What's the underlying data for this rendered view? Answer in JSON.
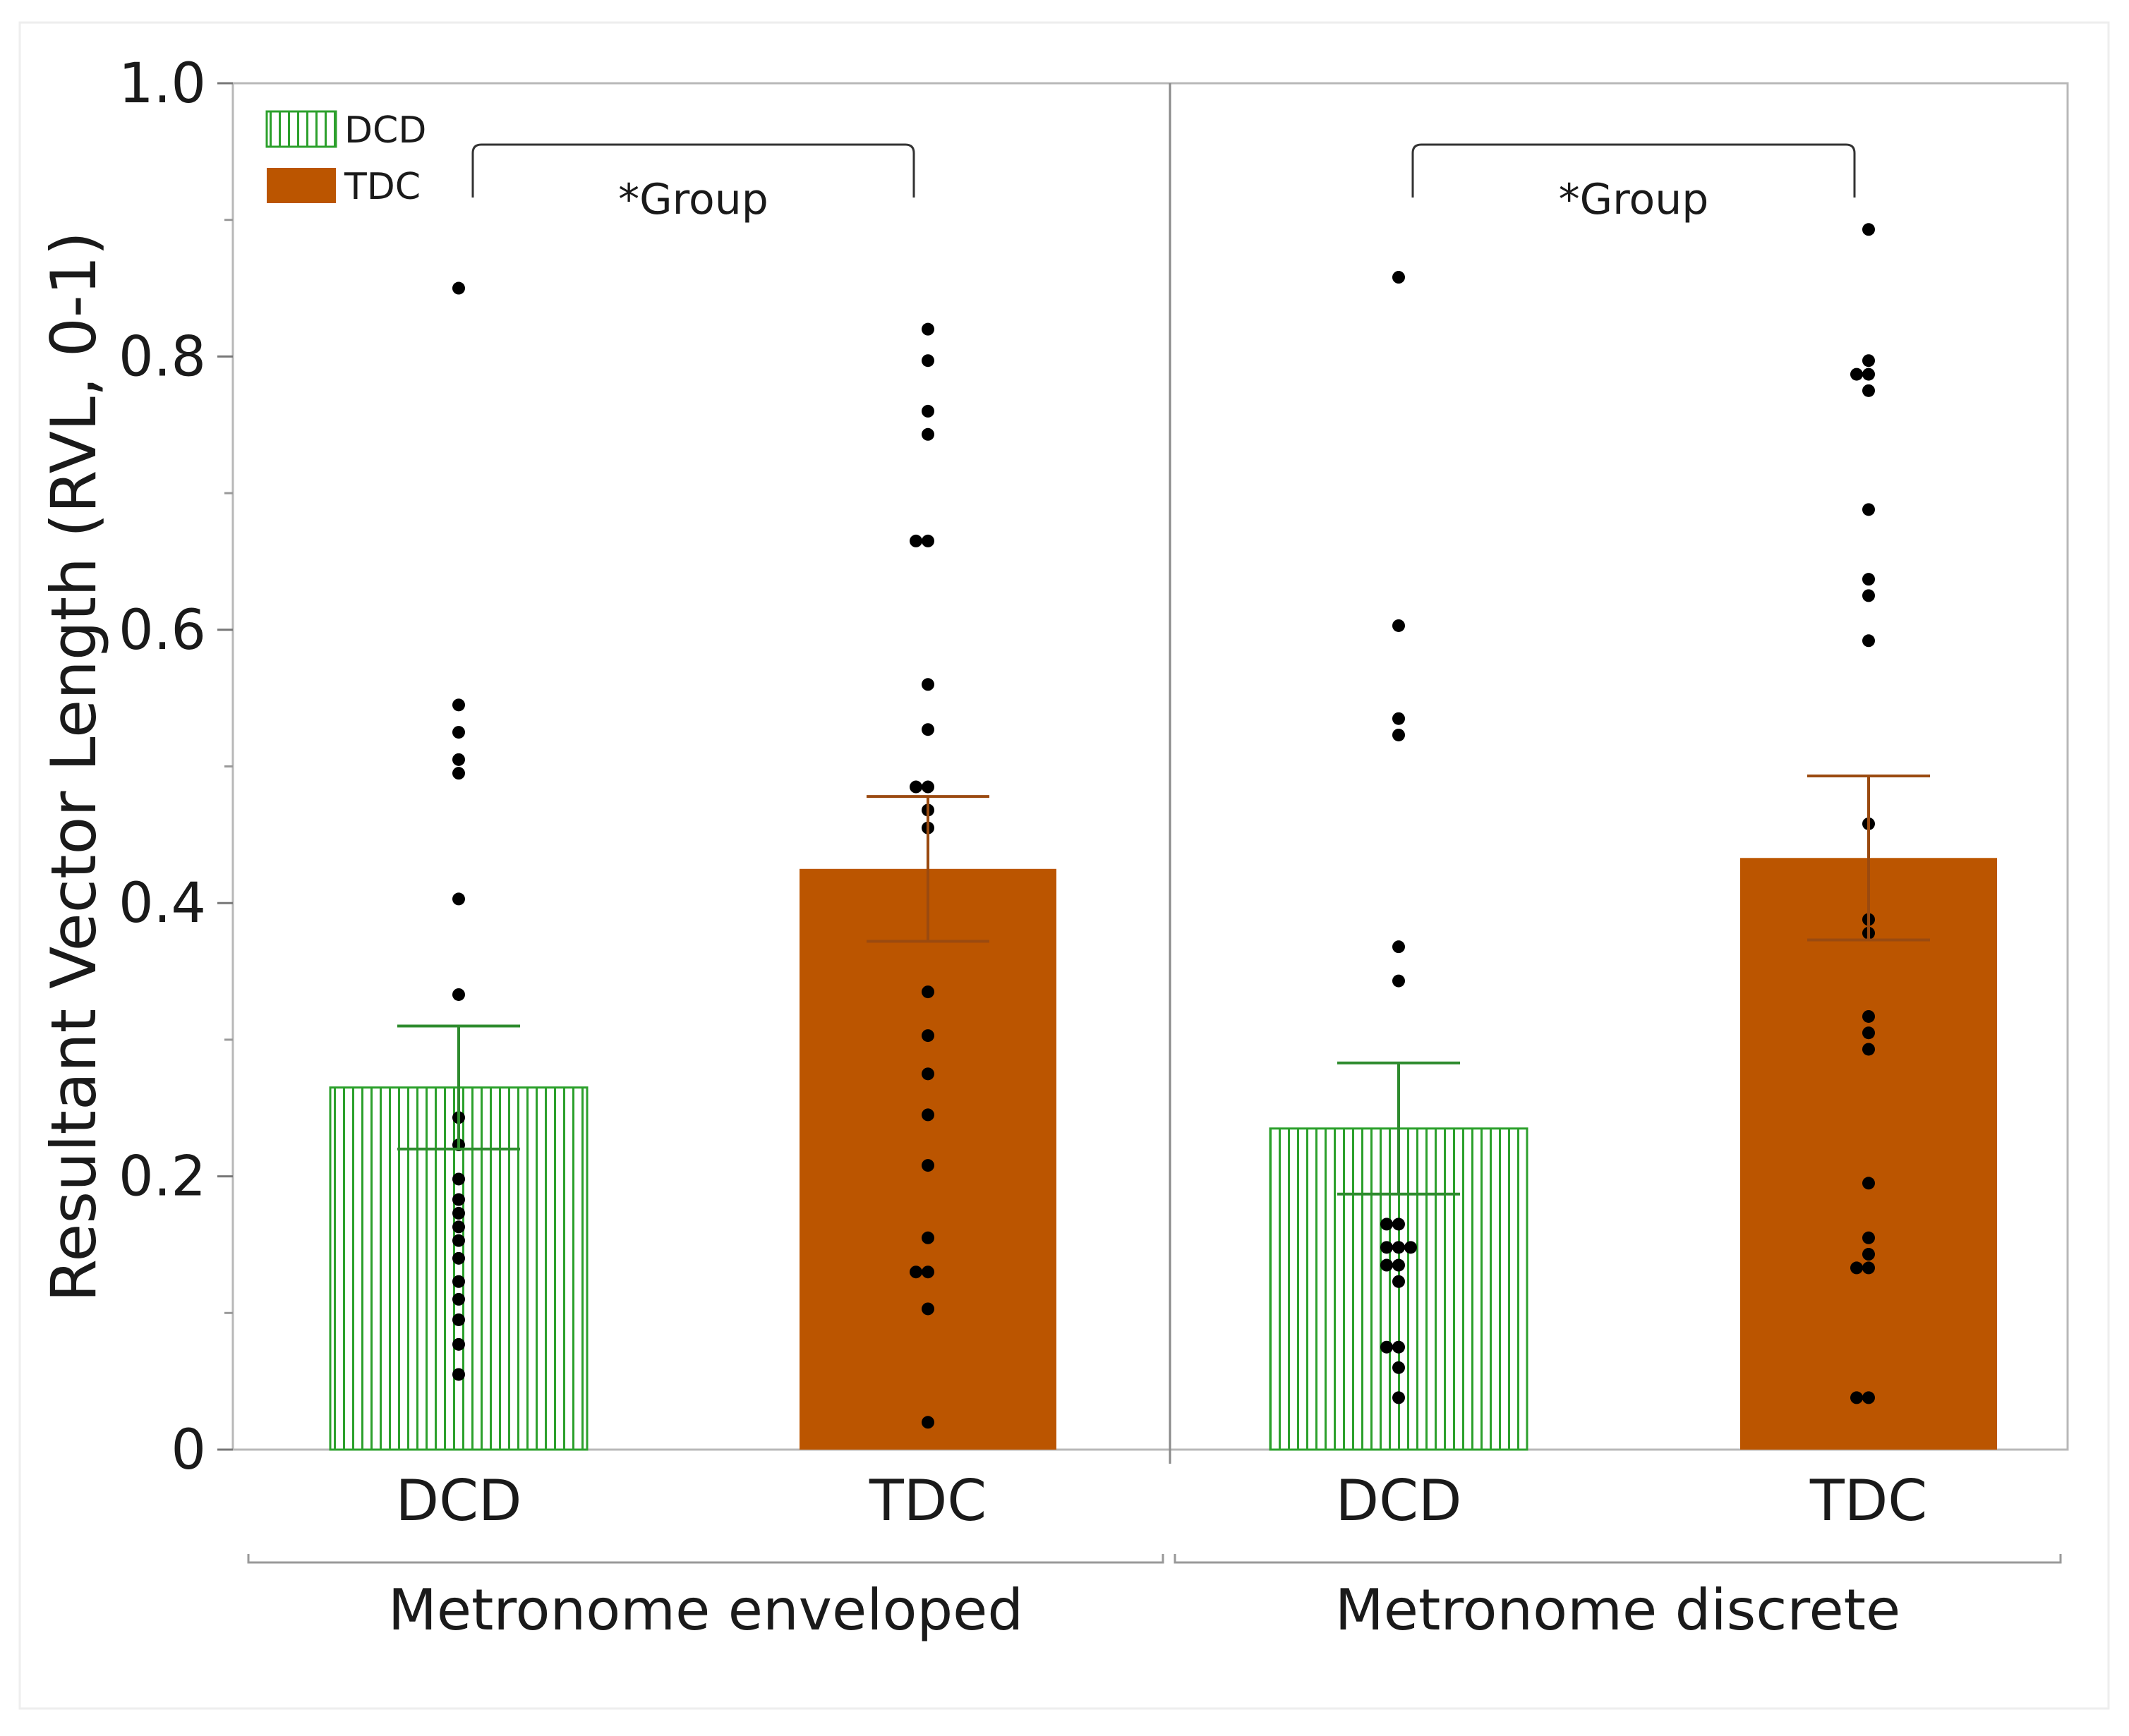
{
  "chart_data": {
    "type": "bar",
    "ylabel": "Resultant Vector Length (RVL, 0-1)",
    "ylim": [
      0,
      1.0
    ],
    "yticks": [
      {
        "value": 0,
        "label": "0"
      },
      {
        "value": 0.2,
        "label": "0.2"
      },
      {
        "value": 0.4,
        "label": "0.4"
      },
      {
        "value": 0.6,
        "label": "0.6"
      },
      {
        "value": 0.8,
        "label": "0.8"
      },
      {
        "value": 1.0,
        "label": "1.0"
      }
    ],
    "minor_ticks": [
      0.1,
      0.3,
      0.5,
      0.7,
      0.9
    ],
    "legend": [
      {
        "name": "DCD",
        "style": "hatched",
        "color": "#2ca02c"
      },
      {
        "name": "TDC",
        "style": "solid",
        "color": "#bb5500"
      }
    ],
    "panels": [
      {
        "title": "Metronome enveloped",
        "annotation": "*Group",
        "groups": [
          {
            "name": "DCD",
            "mean": 0.265,
            "err_low": 0.22,
            "err_high": 0.31,
            "points": [
              0.85,
              0.545,
              0.525,
              0.505,
              0.495,
              0.403,
              0.333,
              0.243,
              0.223,
              0.198,
              0.183,
              0.173,
              0.163,
              0.153,
              0.14,
              0.123,
              0.11,
              0.095,
              0.077,
              0.055
            ]
          },
          {
            "name": "TDC",
            "mean": 0.425,
            "err_low": 0.372,
            "err_high": 0.478,
            "points": [
              0.82,
              0.797,
              0.76,
              0.743,
              0.665,
              0.665,
              0.56,
              0.527,
              0.485,
              0.485,
              0.468,
              0.455,
              0.335,
              0.303,
              0.275,
              0.245,
              0.208,
              0.155,
              0.13,
              0.13,
              0.103,
              0.02
            ]
          }
        ]
      },
      {
        "title": "Metronome discrete",
        "annotation": "*Group",
        "groups": [
          {
            "name": "DCD",
            "mean": 0.235,
            "err_low": 0.187,
            "err_high": 0.283,
            "points": [
              0.858,
              0.603,
              0.535,
              0.523,
              0.368,
              0.343,
              0.165,
              0.165,
              0.148,
              0.148,
              0.148,
              0.135,
              0.135,
              0.123,
              0.075,
              0.075,
              0.06,
              0.038
            ]
          },
          {
            "name": "TDC",
            "mean": 0.433,
            "err_low": 0.373,
            "err_high": 0.493,
            "points": [
              0.893,
              0.797,
              0.787,
              0.787,
              0.775,
              0.688,
              0.637,
              0.625,
              0.592,
              0.458,
              0.388,
              0.378,
              0.317,
              0.305,
              0.293,
              0.195,
              0.155,
              0.143,
              0.133,
              0.133,
              0.038,
              0.038
            ]
          }
        ]
      }
    ]
  }
}
